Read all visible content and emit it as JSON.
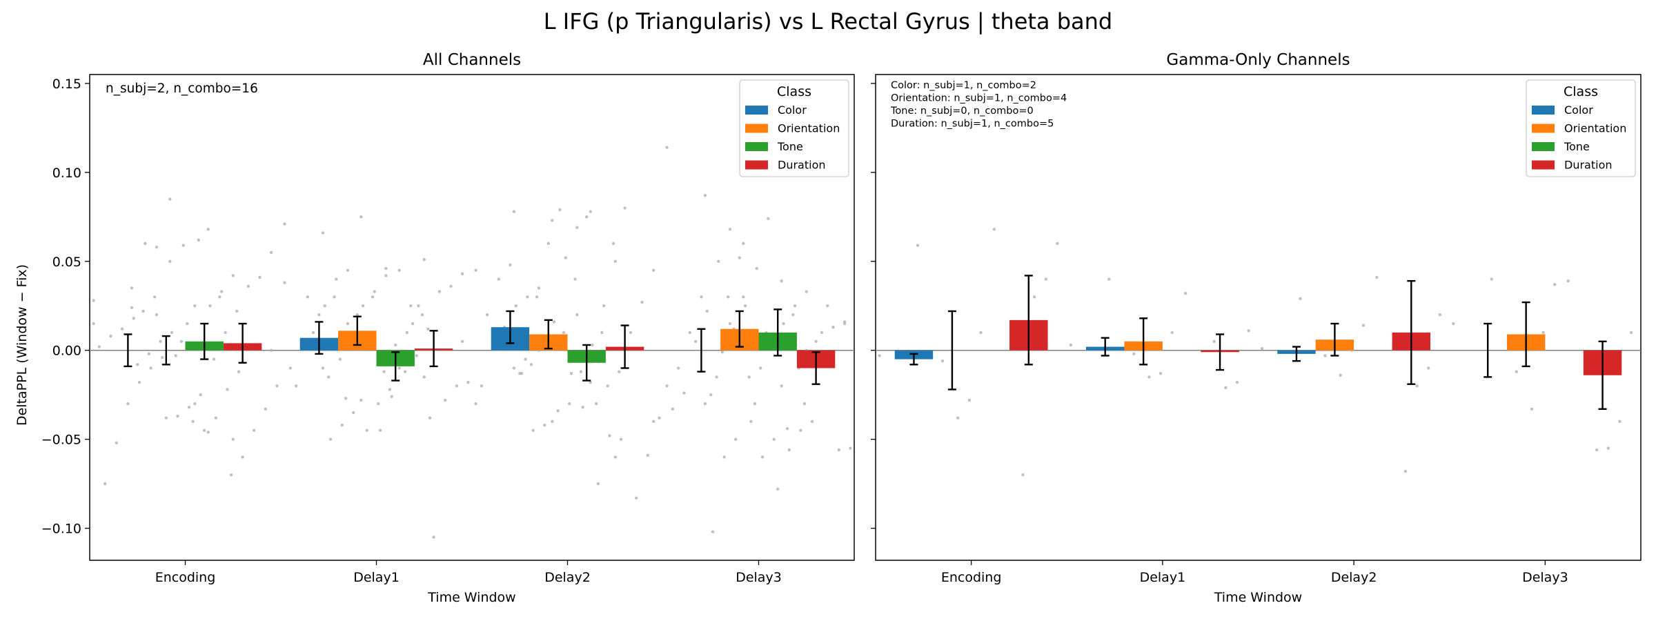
{
  "figure": {
    "suptitle": "L IFG (p Triangularis) vs L Rectal Gyrus  |  theta band",
    "ylabel": "DeltaPPL (Window − Fix)"
  },
  "colors": {
    "Color": "#1f77b4",
    "Orientation": "#ff7f0e",
    "Tone": "#2ca02c",
    "Duration": "#d62728",
    "points": "#b0b0b0",
    "zero_line": "#808080"
  },
  "chart_data": [
    {
      "type": "bar",
      "title": "All Channels",
      "xlabel": "Time Window",
      "ylabel": "DeltaPPL (Window − Fix)",
      "ylim": [
        -0.118,
        0.155
      ],
      "yticks": [
        "−0.10",
        "−0.05",
        "0.00",
        "0.05",
        "0.10",
        "0.15"
      ],
      "categories": [
        "Encoding",
        "Delay1",
        "Delay2",
        "Delay3"
      ],
      "annotation": [
        "n_subj=2, n_combo=16"
      ],
      "legend": {
        "title": "Class",
        "position": "top-right"
      },
      "series": [
        {
          "name": "Color",
          "values": [
            0.0,
            0.007,
            0.013,
            0.0
          ],
          "errors": [
            0.009,
            0.009,
            0.009,
            0.012
          ]
        },
        {
          "name": "Orientation",
          "values": [
            0.0,
            0.011,
            0.009,
            0.012
          ],
          "errors": [
            0.008,
            0.008,
            0.008,
            0.01
          ]
        },
        {
          "name": "Tone",
          "values": [
            0.005,
            -0.009,
            -0.007,
            0.01
          ],
          "errors": [
            0.01,
            0.008,
            0.01,
            0.013
          ]
        },
        {
          "name": "Duration",
          "values": [
            0.004,
            0.001,
            0.002,
            -0.01
          ],
          "errors": [
            0.011,
            0.01,
            0.012,
            0.009
          ]
        }
      ],
      "points": [
        [
          [
            0.028,
            0.058,
            0.06,
            0.018,
            0.012,
            0.008,
            0.002,
            -0.004,
            -0.01,
            -0.018,
            -0.03,
            -0.052,
            -0.075,
            0.015,
            0.02
          ],
          [
            0.035,
            0.025,
            0.059,
            0.01,
            0.005,
            -0.002,
            -0.008,
            -0.025,
            -0.032,
            -0.037,
            -0.038,
            0.03,
            0.022,
            0.024,
            -0.03
          ],
          [
            0.085,
            0.042,
            0.033,
            0.025,
            0.062,
            0.015,
            -0.003,
            -0.012,
            -0.022,
            -0.038,
            -0.045,
            -0.04,
            0.005,
            0.05,
            -0.05
          ],
          [
            0.068,
            0.055,
            0.041,
            0.036,
            0.022,
            0.01,
            -0.005,
            -0.02,
            -0.033,
            -0.045,
            -0.06,
            -0.07,
            0.03,
            -0.046,
            0.0
          ]
        ],
        [
          [
            0.071,
            0.045,
            0.04,
            0.025,
            0.01,
            0.005,
            -0.01,
            -0.035,
            -0.042,
            -0.05,
            0.02,
            0.03,
            -0.02,
            0.038,
            0.015
          ],
          [
            0.066,
            0.046,
            0.033,
            0.025,
            0.01,
            -0.005,
            -0.015,
            -0.026,
            -0.045,
            0.002,
            0.02,
            -0.027,
            0.03,
            -0.01,
            0.042
          ],
          [
            0.075,
            0.051,
            0.015,
            -0.005,
            -0.022,
            -0.03,
            -0.045,
            -0.038,
            0.025,
            0.01,
            0.003,
            -0.012,
            0.03,
            -0.028,
            -0.015
          ],
          [
            0.045,
            0.043,
            0.036,
            0.033,
            0.012,
            -0.003,
            -0.012,
            -0.018,
            -0.02,
            -0.028,
            -0.105,
            0.02,
            0.025,
            -0.01,
            0.005
          ]
        ],
        [
          [
            0.045,
            0.035,
            0.03,
            0.025,
            0.013,
            0.005,
            -0.02,
            -0.042,
            -0.045,
            -0.013,
            0.048,
            0.04,
            0.02,
            -0.03,
            0.0
          ],
          [
            0.078,
            0.069,
            0.052,
            0.016,
            0.008,
            -0.008,
            -0.013,
            -0.032,
            -0.013,
            0.079,
            0.06,
            0.03,
            -0.005,
            -0.01,
            0.02
          ],
          [
            0.073,
            0.05,
            0.025,
            0.003,
            -0.012,
            -0.03,
            -0.034,
            -0.05,
            -0.048,
            -0.075,
            0.075,
            0.04,
            0.01,
            -0.04,
            -0.06
          ],
          [
            0.078,
            0.045,
            0.027,
            0.01,
            -0.012,
            -0.02,
            -0.03,
            -0.038,
            -0.059,
            -0.083,
            0.08,
            0.06,
            0.01,
            -0.018,
            -0.04
          ]
        ],
        [
          [
            0.114,
            0.068,
            0.05,
            0.022,
            0.005,
            -0.024,
            -0.033,
            -0.05,
            -0.06,
            -0.102,
            0.03,
            0.01,
            -0.01,
            -0.02,
            0.015
          ],
          [
            0.087,
            0.074,
            0.046,
            0.025,
            0.012,
            -0.001,
            -0.025,
            -0.05,
            -0.06,
            -0.04,
            0.052,
            0.03,
            -0.015,
            -0.03,
            0.005
          ],
          [
            0.06,
            0.033,
            0.025,
            0.015,
            0.004,
            -0.01,
            -0.015,
            -0.04,
            -0.045,
            -0.056,
            -0.078,
            0.01,
            -0.03,
            0.03,
            0.0
          ],
          [
            0.039,
            0.016,
            0.013,
            0.01,
            -0.005,
            -0.01,
            -0.044,
            -0.055,
            -0.056,
            0.025,
            0.005,
            -0.03,
            0.02,
            -0.02,
            0.015
          ]
        ]
      ]
    },
    {
      "type": "bar",
      "title": "Gamma-Only Channels",
      "xlabel": "Time Window",
      "ylim": [
        -0.118,
        0.155
      ],
      "categories": [
        "Encoding",
        "Delay1",
        "Delay2",
        "Delay3"
      ],
      "annotation": [
        "Color: n_subj=1, n_combo=2",
        "Orientation: n_subj=1, n_combo=4",
        "Tone: n_subj=0, n_combo=0",
        "Duration: n_subj=1, n_combo=5"
      ],
      "legend": {
        "title": "Class",
        "position": "top-right"
      },
      "series": [
        {
          "name": "Color",
          "values": [
            -0.005,
            0.002,
            -0.002,
            0.0
          ],
          "errors": [
            0.003,
            0.005,
            0.004,
            0.015
          ]
        },
        {
          "name": "Orientation",
          "values": [
            0.0,
            0.005,
            0.006,
            0.009
          ],
          "errors": [
            0.022,
            0.013,
            0.009,
            0.018
          ]
        },
        {
          "name": "Tone",
          "values": [
            null,
            null,
            null,
            null
          ],
          "errors": [
            null,
            null,
            null,
            null
          ]
        },
        {
          "name": "Duration",
          "values": [
            0.017,
            -0.001,
            0.01,
            -0.014
          ],
          "errors": [
            0.025,
            0.01,
            0.029,
            0.019
          ]
        }
      ],
      "points": [
        [
          [
            -0.003,
            -0.006
          ],
          [
            0.059,
            0.01,
            -0.028,
            -0.038
          ],
          [],
          [
            0.068,
            0.06,
            0.04,
            0.03,
            -0.07
          ]
        ],
        [
          [
            0.003,
            -0.002
          ],
          [
            0.04,
            0.01,
            -0.013,
            -0.015
          ],
          [],
          [
            0.032,
            0.011,
            -0.018,
            -0.021,
            0.005
          ]
        ],
        [
          [
            0.001,
            -0.003
          ],
          [
            0.029,
            0.014,
            0.0,
            -0.014
          ],
          [],
          [
            0.041,
            0.02,
            -0.01,
            -0.02,
            -0.068
          ]
        ],
        [
          [
            0.015,
            -0.012
          ],
          [
            0.04,
            0.037,
            0.01,
            -0.033
          ],
          [],
          [
            0.039,
            0.01,
            -0.04,
            -0.055,
            -0.056
          ]
        ]
      ]
    }
  ]
}
